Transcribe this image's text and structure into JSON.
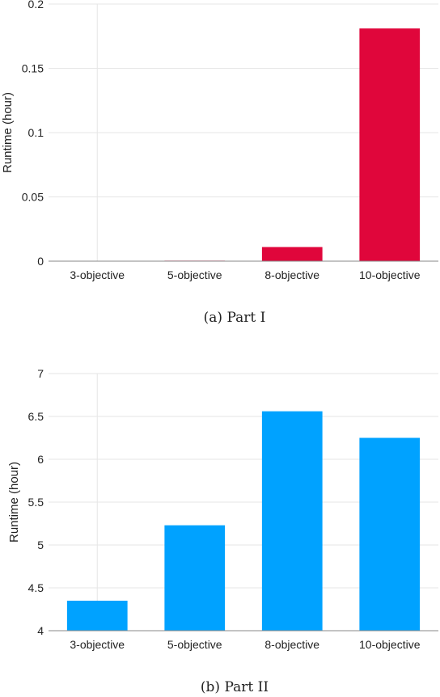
{
  "chart_data": [
    {
      "type": "bar",
      "caption": "(a)  Part I",
      "ylabel": "Runtime (hour)",
      "categories": [
        "3-objective",
        "5-objective",
        "8-objective",
        "10-objective"
      ],
      "values": [
        0.0002,
        0.0004,
        0.011,
        0.181
      ],
      "ylim": [
        0,
        0.2
      ],
      "yticks": [
        "0",
        "0.05",
        "0.1",
        "0.15",
        "0.2"
      ],
      "yticks_values": [
        0,
        0.05,
        0.1,
        0.15,
        0.2
      ],
      "color": "#e0063b",
      "grid": true
    },
    {
      "type": "bar",
      "caption": "(b)  Part II",
      "ylabel": "Runtime (hour)",
      "categories": [
        "3-objective",
        "5-objective",
        "8-objective",
        "10-objective"
      ],
      "values": [
        4.35,
        5.23,
        6.56,
        6.25
      ],
      "ylim": [
        4,
        7
      ],
      "yticks": [
        "4",
        "4.5",
        "5",
        "5.5",
        "6",
        "6.5",
        "7"
      ],
      "yticks_values": [
        4,
        4.5,
        5,
        5.5,
        6,
        6.5,
        7
      ],
      "color": "#00a2ff",
      "grid": true
    }
  ]
}
